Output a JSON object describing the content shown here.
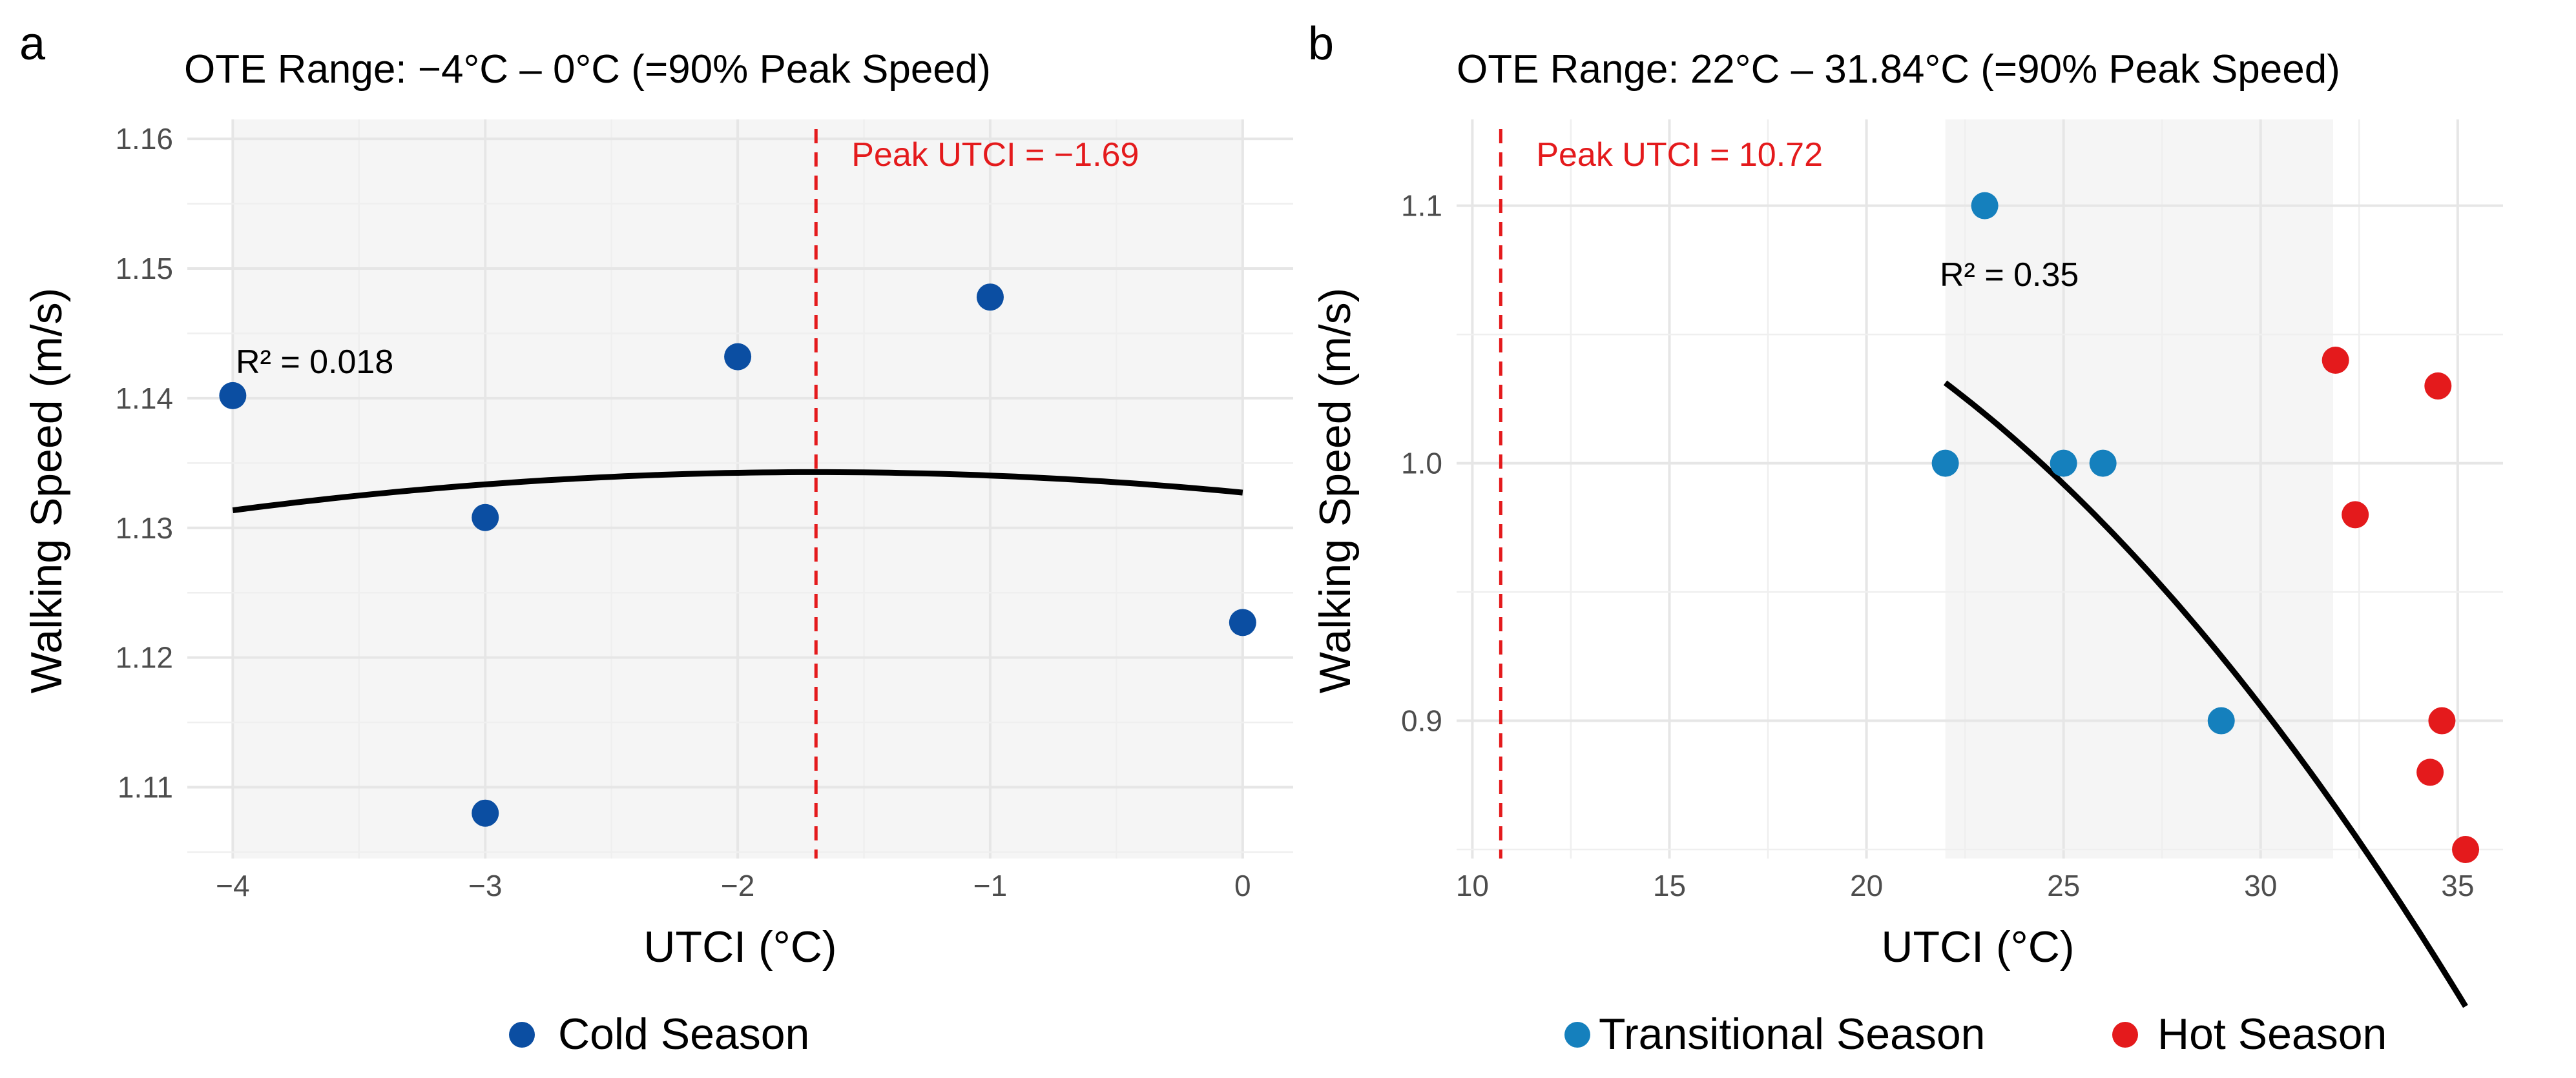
{
  "chart_data": [
    {
      "panel": "a",
      "type": "scatter",
      "title": "OTE Range: −4°C – 0°C (=90% Peak Speed)",
      "xlabel": "UTCI (°C)",
      "ylabel": "Walking Speed (m/s)",
      "xlim": [
        -4.18,
        0.2
      ],
      "ylim": [
        1.1045,
        1.1615
      ],
      "x_ticks": [
        -4,
        -3,
        -2,
        -1,
        0
      ],
      "x_tick_labels": [
        "−4",
        "−3",
        "−2",
        "−1",
        "0"
      ],
      "y_ticks": [
        1.11,
        1.12,
        1.13,
        1.14,
        1.15,
        1.16
      ],
      "y_tick_labels": [
        "1.11",
        "1.12",
        "1.13",
        "1.14",
        "1.15",
        "1.16"
      ],
      "grid": true,
      "ote_range": [
        -4,
        0
      ],
      "series": [
        {
          "name": "Cold Season",
          "color": "#0b4ea2",
          "points": [
            {
              "x": -4,
              "y": 1.1402
            },
            {
              "x": -3,
              "y": 1.1308
            },
            {
              "x": -3,
              "y": 1.108
            },
            {
              "x": -2,
              "y": 1.1432
            },
            {
              "x": -1,
              "y": 1.1478
            },
            {
              "x": 0,
              "y": 1.1227
            }
          ]
        }
      ],
      "fit": {
        "type": "quadratic",
        "peak_x": -1.69,
        "peak_y": 1.1343,
        "a": -0.000552,
        "x_range": [
          -4,
          0
        ],
        "color": "#000000"
      },
      "peak_line": {
        "x": -1.69,
        "label": "Peak UTCI = −1.69",
        "color": "#e41a1c"
      },
      "r2_label": "R² = 0.018",
      "legend": [
        "Cold Season"
      ]
    },
    {
      "panel": "b",
      "type": "scatter",
      "title": "OTE Range: 22°C – 31.84°C (=90% Peak Speed)",
      "xlabel": "UTCI (°C)",
      "ylabel": "Walking Speed (m/s)",
      "xlim": [
        9.6,
        36.15
      ],
      "ylim": [
        0.8465,
        1.1335
      ],
      "x_ticks": [
        10,
        15,
        20,
        25,
        30,
        35
      ],
      "x_tick_labels": [
        "10",
        "15",
        "20",
        "25",
        "30",
        "35"
      ],
      "y_ticks": [
        0.9,
        1.0,
        1.1
      ],
      "y_tick_labels": [
        "0.9",
        "1.0",
        "1.1"
      ],
      "grid": true,
      "ote_range": [
        22,
        31.84
      ],
      "series": [
        {
          "name": "Transitional Season",
          "color": "#1580bd",
          "points": [
            {
              "x": 23,
              "y": 1.1
            },
            {
              "x": 22,
              "y": 1.0
            },
            {
              "x": 25,
              "y": 1.0
            },
            {
              "x": 26,
              "y": 1.0
            },
            {
              "x": 29,
              "y": 0.9
            }
          ]
        },
        {
          "name": "Hot Season",
          "color": "#e41a1c",
          "points": [
            {
              "x": 31.9,
              "y": 1.04
            },
            {
              "x": 34.5,
              "y": 1.03
            },
            {
              "x": 32.4,
              "y": 0.98
            },
            {
              "x": 34.6,
              "y": 0.9
            },
            {
              "x": 34.3,
              "y": 0.88
            },
            {
              "x": 35.2,
              "y": 0.85
            }
          ]
        }
      ],
      "fit": {
        "type": "quadratic",
        "peak_x": 10.72,
        "peak_y": 1.0965,
        "a": -0.000513,
        "x_range": [
          22,
          35.2
        ],
        "color": "#000000"
      },
      "peak_line": {
        "x": 10.72,
        "label": "Peak UTCI = 10.72",
        "color": "#e41a1c"
      },
      "r2_label": "R² = 0.35",
      "legend": [
        "Transitional Season",
        "Hot Season"
      ]
    }
  ]
}
